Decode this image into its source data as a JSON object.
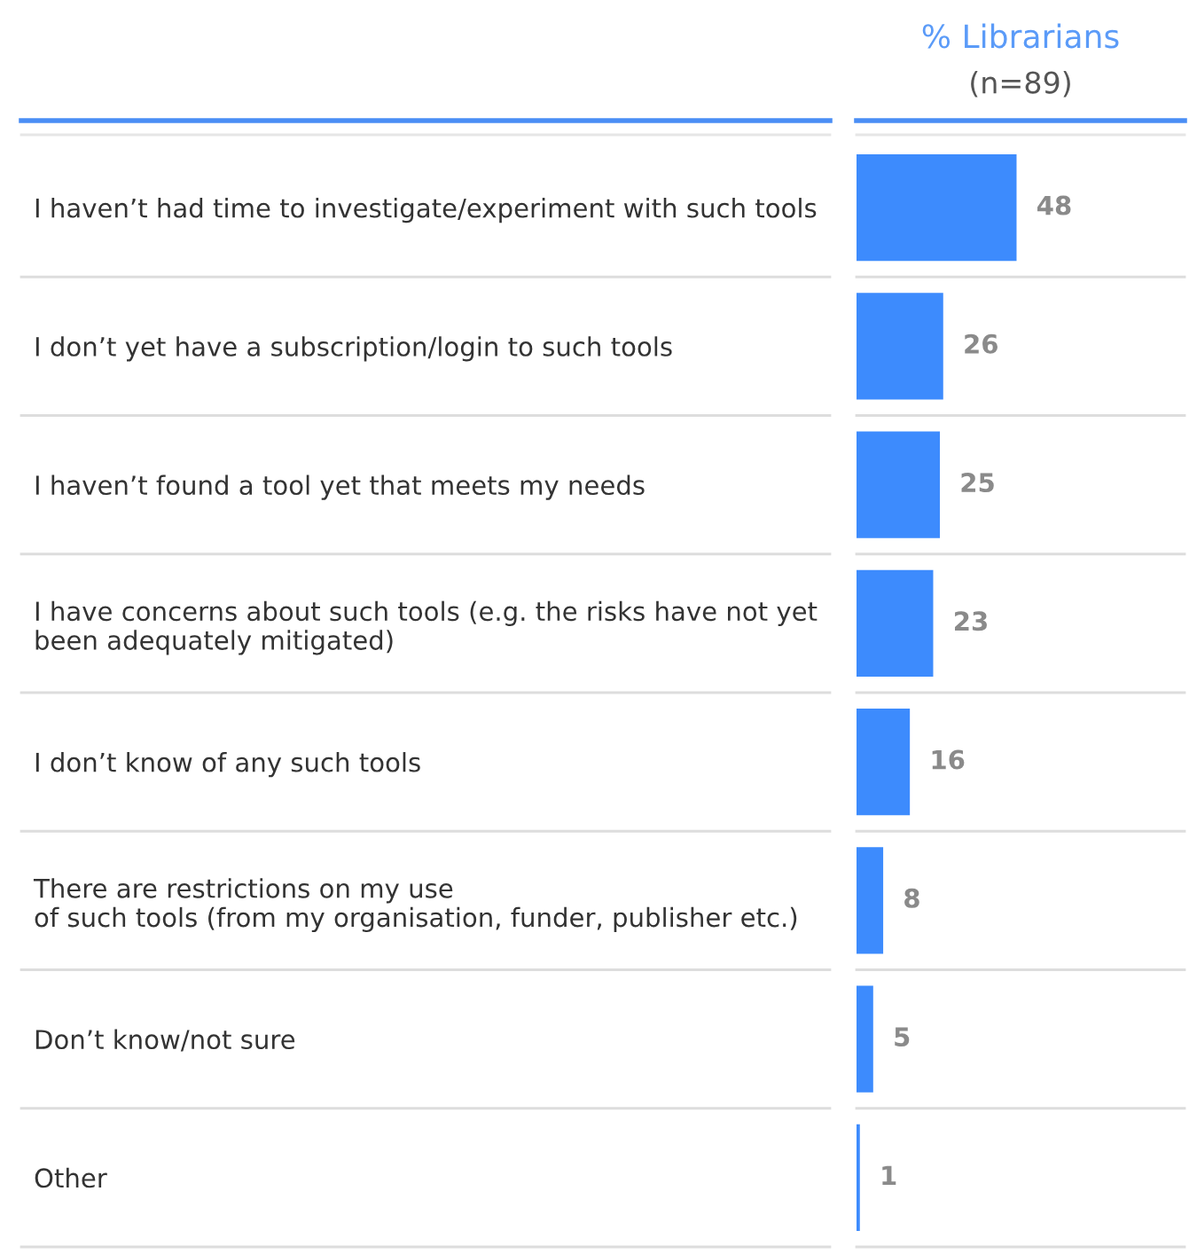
{
  "chart_data": {
    "type": "bar",
    "orientation": "horizontal",
    "title": "% Librarians",
    "subtitle": "(n=89)",
    "categories": [
      "I haven’t had time to investigate/experiment with such tools",
      "I don’t yet have a subscription/login to such tools",
      "I haven’t found a tool yet that meets my needs",
      "I have concerns about such tools (e.g. the risks have not yet\nbeen adequately mitigated)",
      "I don’t know of any such tools",
      "There are restrictions on my use\nof such tools (from my organisation, funder, publisher etc.)",
      "Don’t know/not sure",
      "Other"
    ],
    "values": [
      48,
      26,
      25,
      23,
      16,
      8,
      5,
      1
    ],
    "color": "#3d8bfd",
    "data_labels": true,
    "grid": false,
    "legend": false
  }
}
